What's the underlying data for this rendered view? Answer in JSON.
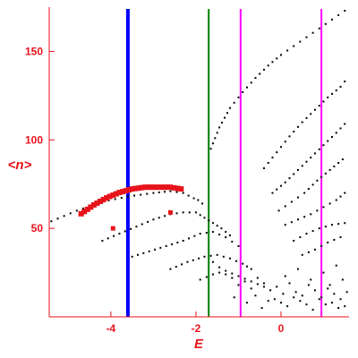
{
  "chart_data": {
    "type": "scatter",
    "xlabel": "E",
    "ylabel": "<n>",
    "xlim": [
      -5.45,
      1.6
    ],
    "ylim": [
      0,
      175
    ],
    "x_ticks": [
      -4,
      -2,
      0
    ],
    "x_tick_labels": [
      "-4",
      "-2",
      "0"
    ],
    "y_ticks": [
      50,
      100,
      150
    ],
    "y_tick_labels": [
      "50",
      "100",
      "150"
    ],
    "grid": false,
    "legend": "none",
    "colors": {
      "axis": "#e8131a",
      "points": "#000000",
      "highlight": "#e8131a"
    },
    "vertical_lines": [
      {
        "x": -3.6,
        "color": "#0000ff",
        "weight": "thick"
      },
      {
        "x": -1.7,
        "color": "#008000",
        "weight": "thin"
      },
      {
        "x": -0.95,
        "color": "#ff00ff",
        "weight": "thin"
      },
      {
        "x": 0.95,
        "color": "#ff00ff",
        "weight": "thin"
      }
    ],
    "series": [
      {
        "color": "#000000",
        "kind": "curve",
        "x": [
          -5.4,
          -4.8,
          -4.2,
          -3.6,
          -3.0,
          -2.6,
          -2.3,
          -2.05,
          -1.95,
          -1.85
        ],
        "y": [
          54,
          60,
          65,
          68,
          70,
          71,
          70,
          67,
          66,
          64
        ]
      },
      {
        "color": "#000000",
        "kind": "curve",
        "x": [
          -4.2,
          -3.8,
          -3.4,
          -3.0,
          -2.6,
          -2.3,
          -2.0,
          -1.8,
          -1.6,
          -1.4,
          -1.2
        ],
        "y": [
          43,
          47,
          51,
          55,
          58,
          59,
          59,
          56,
          53,
          50,
          46
        ]
      },
      {
        "color": "#000000",
        "kind": "curve",
        "x": [
          -3.5,
          -3.1,
          -2.7,
          -2.3,
          -1.9,
          -1.6,
          -1.3,
          -1.0
        ],
        "y": [
          34,
          37,
          40,
          43,
          47,
          48,
          45,
          40
        ]
      },
      {
        "color": "#000000",
        "kind": "curve",
        "x": [
          -2.6,
          -2.2,
          -1.8,
          -1.5,
          -1.2,
          -0.9,
          -0.7
        ],
        "y": [
          27,
          31,
          34,
          35,
          33,
          30,
          27
        ]
      },
      {
        "color": "#000000",
        "kind": "curve",
        "x": [
          -1.9,
          -1.6,
          -1.3,
          -1.0,
          -0.7,
          -0.4
        ],
        "y": [
          21,
          24,
          26,
          23,
          20,
          17
        ]
      },
      {
        "color": "#000000",
        "kind": "curve",
        "x": [
          -1.65,
          -1.45,
          -1.2,
          -0.9,
          -0.6,
          -0.3,
          0.0,
          0.3,
          0.6,
          0.9,
          1.2,
          1.5
        ],
        "y": [
          95,
          107,
          118,
          127,
          135,
          142,
          148,
          153,
          158,
          163,
          168,
          173
        ]
      },
      {
        "color": "#000000",
        "kind": "curve",
        "x": [
          -0.4,
          -0.1,
          0.2,
          0.5,
          0.8,
          1.1,
          1.4,
          1.5
        ],
        "y": [
          84,
          93,
          102,
          110,
          117,
          124,
          130,
          133
        ]
      },
      {
        "color": "#000000",
        "kind": "curve",
        "x": [
          -0.2,
          0.1,
          0.4,
          0.7,
          1.0,
          1.3,
          1.5
        ],
        "y": [
          70,
          76,
          83,
          90,
          97,
          104,
          109
        ]
      },
      {
        "color": "#000000",
        "kind": "curve",
        "x": [
          -0.05,
          0.25,
          0.55,
          0.85,
          1.15,
          1.45
        ],
        "y": [
          60,
          65,
          70,
          77,
          83,
          89
        ]
      },
      {
        "color": "#000000",
        "kind": "curve",
        "x": [
          0.1,
          0.4,
          0.7,
          1.0,
          1.3,
          1.5
        ],
        "y": [
          52,
          55,
          58,
          62,
          66,
          70
        ]
      },
      {
        "color": "#000000",
        "kind": "curve",
        "x": [
          0.3,
          0.6,
          0.9,
          1.2,
          1.5
        ],
        "y": [
          43,
          47,
          50,
          52,
          53
        ]
      },
      {
        "color": "#000000",
        "kind": "curve",
        "x": [
          0.5,
          0.8,
          1.1,
          1.4
        ],
        "y": [
          35,
          38,
          42,
          45
        ]
      },
      {
        "color": "#000000",
        "kind": "scatter",
        "x": [
          -1.6,
          -1.45,
          -1.3,
          -1.15,
          -1.0,
          -0.85,
          -0.7,
          -0.55,
          -0.4,
          -0.25,
          -0.1,
          0.05,
          0.2,
          0.35,
          0.5,
          0.65,
          0.8,
          0.95,
          1.1,
          1.25,
          1.4,
          1.55,
          -0.6,
          -0.3,
          0.0,
          0.3,
          0.6,
          0.9,
          1.2,
          1.5,
          -0.45,
          -0.15,
          0.15,
          0.45,
          0.75,
          1.05,
          1.35,
          0.1,
          0.4,
          0.7,
          1.0,
          1.3,
          -0.8,
          -1.1,
          1.45,
          1.15
        ],
        "y": [
          31,
          28,
          24,
          22,
          18,
          20,
          16,
          22,
          19,
          15,
          17,
          13,
          19,
          14,
          12,
          18,
          15,
          11,
          16,
          13,
          10,
          14,
          12,
          9,
          8,
          11,
          7,
          10,
          8,
          6,
          5,
          10,
          6,
          9,
          4,
          7,
          5,
          23,
          27,
          21,
          25,
          29,
          8,
          11,
          21,
          18
        ]
      },
      {
        "color": "#e8131a",
        "kind": "curve",
        "x": [
          -4.7,
          -4.4,
          -4.1,
          -3.8,
          -3.5,
          -3.2,
          -2.9,
          -2.6,
          -2.35
        ],
        "y": [
          58,
          63,
          67,
          70,
          72,
          73,
          73,
          73,
          72
        ]
      },
      {
        "color": "#e8131a",
        "kind": "scatter",
        "x": [
          -3.95,
          -2.6
        ],
        "y": [
          50,
          59
        ]
      }
    ]
  }
}
